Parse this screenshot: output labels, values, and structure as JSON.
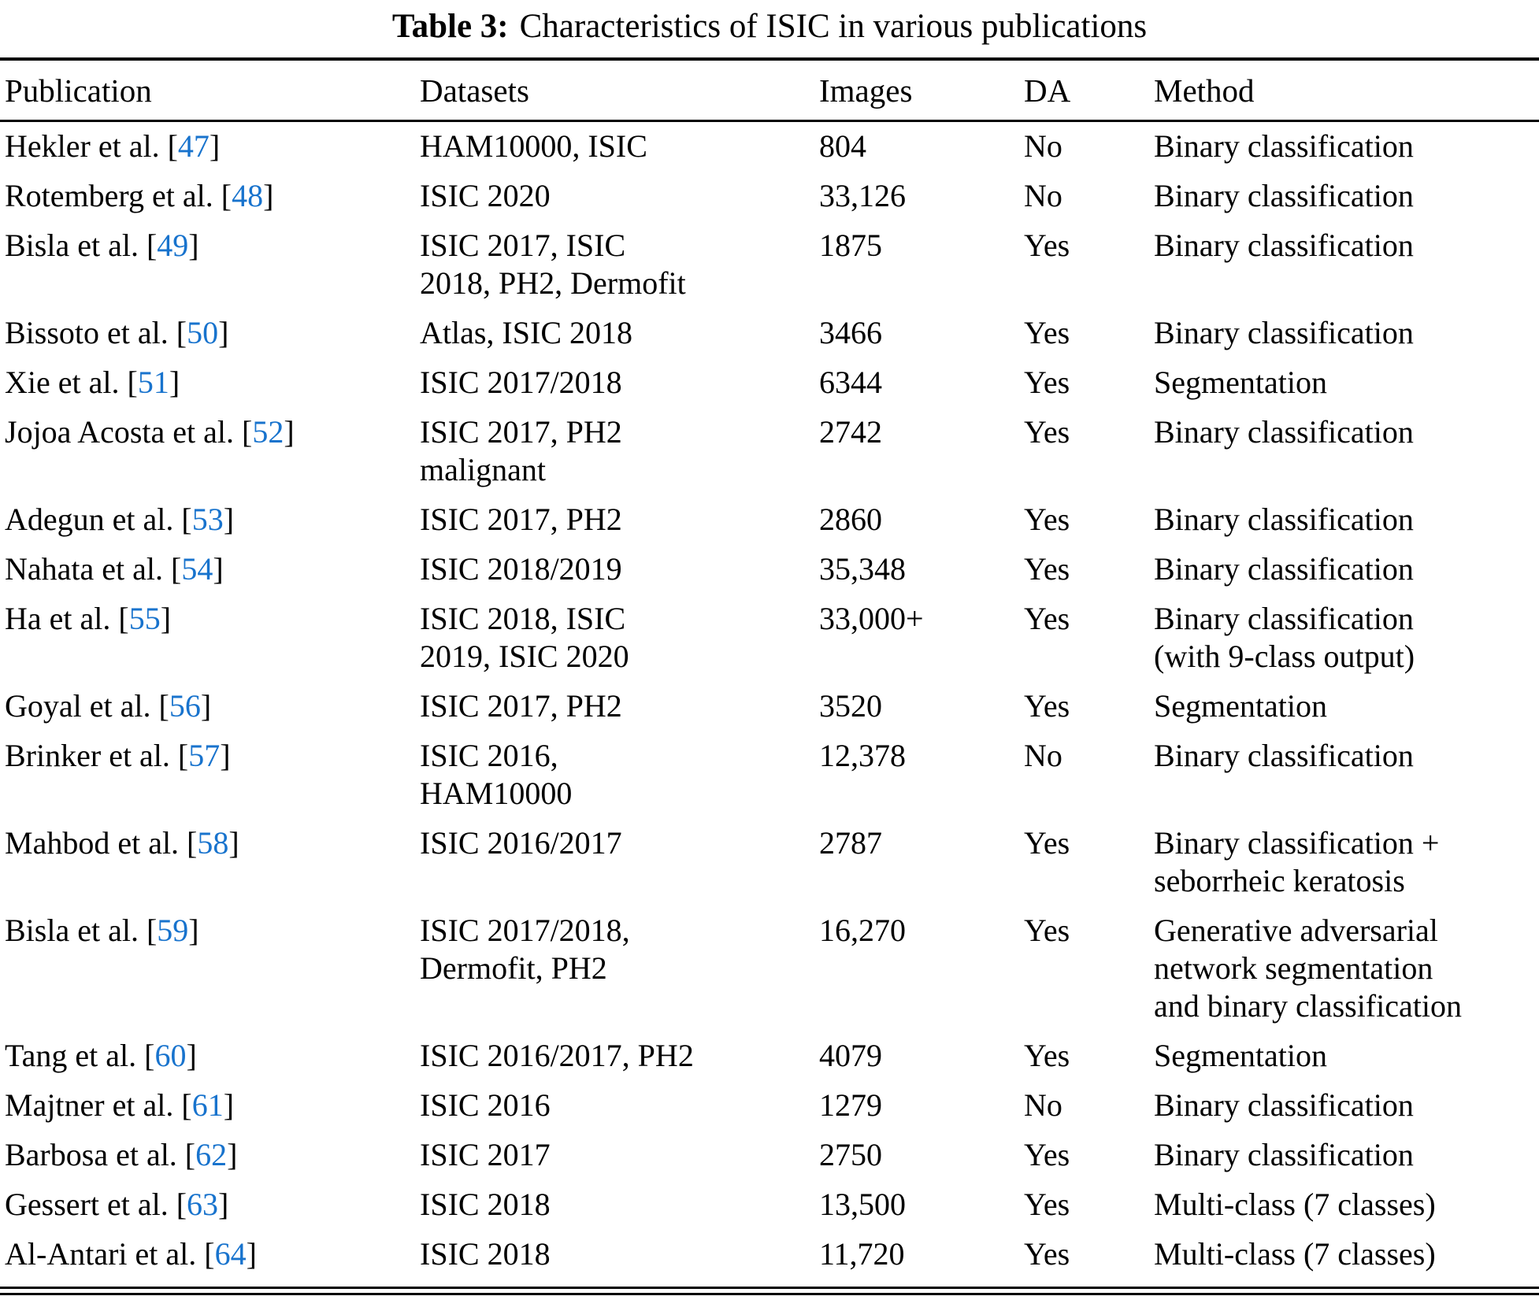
{
  "caption": {
    "label": "Table 3:",
    "text": "Characteristics of ISIC in various publications"
  },
  "cite_color": "#1873cd",
  "table": {
    "columns": [
      "Publication",
      "Datasets",
      "Images",
      "DA",
      "Method"
    ],
    "rows": [
      {
        "publication": "Hekler et al.",
        "ref": "47",
        "datasets": "HAM10000, ISIC",
        "images": "804",
        "da": "No",
        "method": "Binary classification"
      },
      {
        "publication": "Rotemberg et al.",
        "ref": "48",
        "datasets": "ISIC 2020",
        "images": "33,126",
        "da": "No",
        "method": "Binary classification"
      },
      {
        "publication": "Bisla et al.",
        "ref": "49",
        "datasets": "ISIC 2017, ISIC\n2018, PH2, Dermofit",
        "images": "1875",
        "da": "Yes",
        "method": "Binary classification"
      },
      {
        "publication": "Bissoto et al.",
        "ref": "50",
        "datasets": "Atlas, ISIC 2018",
        "images": "3466",
        "da": "Yes",
        "method": "Binary classification"
      },
      {
        "publication": "Xie et al.",
        "ref": "51",
        "datasets": "ISIC 2017/2018",
        "images": "6344",
        "da": "Yes",
        "method": "Segmentation"
      },
      {
        "publication": "Jojoa Acosta et al.",
        "ref": "52",
        "datasets": "ISIC 2017, PH2\nmalignant",
        "images": "2742",
        "da": "Yes",
        "method": "Binary classification"
      },
      {
        "publication": "Adegun et al.",
        "ref": "53",
        "datasets": "ISIC 2017, PH2",
        "images": "2860",
        "da": "Yes",
        "method": "Binary classification"
      },
      {
        "publication": "Nahata et al.",
        "ref": "54",
        "datasets": "ISIC 2018/2019",
        "images": "35,348",
        "da": "Yes",
        "method": "Binary classification"
      },
      {
        "publication": "Ha et al.",
        "ref": "55",
        "datasets": "ISIC 2018, ISIC\n2019, ISIC 2020",
        "images": "33,000+",
        "da": "Yes",
        "method": "Binary classification\n(with 9-class output)"
      },
      {
        "publication": "Goyal et al.",
        "ref": "56",
        "datasets": "ISIC 2017, PH2",
        "images": "3520",
        "da": "Yes",
        "method": "Segmentation"
      },
      {
        "publication": "Brinker et al.",
        "ref": "57",
        "datasets": "ISIC 2016,\nHAM10000",
        "images": "12,378",
        "da": "No",
        "method": "Binary classification"
      },
      {
        "publication": "Mahbod et al.",
        "ref": "58",
        "datasets": "ISIC 2016/2017",
        "images": "2787",
        "da": "Yes",
        "method": "Binary classification +\nseborrheic keratosis"
      },
      {
        "publication": "Bisla et al.",
        "ref": "59",
        "datasets": "ISIC 2017/2018,\nDermofit, PH2",
        "images": "16,270",
        "da": "Yes",
        "method": "Generative adversarial\nnetwork segmentation\nand binary classification"
      },
      {
        "publication": "Tang et al.",
        "ref": "60",
        "datasets": "ISIC 2016/2017, PH2",
        "images": "4079",
        "da": "Yes",
        "method": "Segmentation"
      },
      {
        "publication": "Majtner et al.",
        "ref": "61",
        "datasets": "ISIC 2016",
        "images": "1279",
        "da": "No",
        "method": "Binary classification"
      },
      {
        "publication": "Barbosa et al.",
        "ref": "62",
        "datasets": "ISIC 2017",
        "images": "2750",
        "da": "Yes",
        "method": "Binary classification"
      },
      {
        "publication": "Gessert et al.",
        "ref": "63",
        "datasets": "ISIC 2018",
        "images": "13,500",
        "da": "Yes",
        "method": "Multi-class (7 classes)"
      },
      {
        "publication": "Al-Antari et al.",
        "ref": "64",
        "datasets": "ISIC 2018",
        "images": "11,720",
        "da": "Yes",
        "method": "Multi-class (7 classes)"
      }
    ]
  }
}
